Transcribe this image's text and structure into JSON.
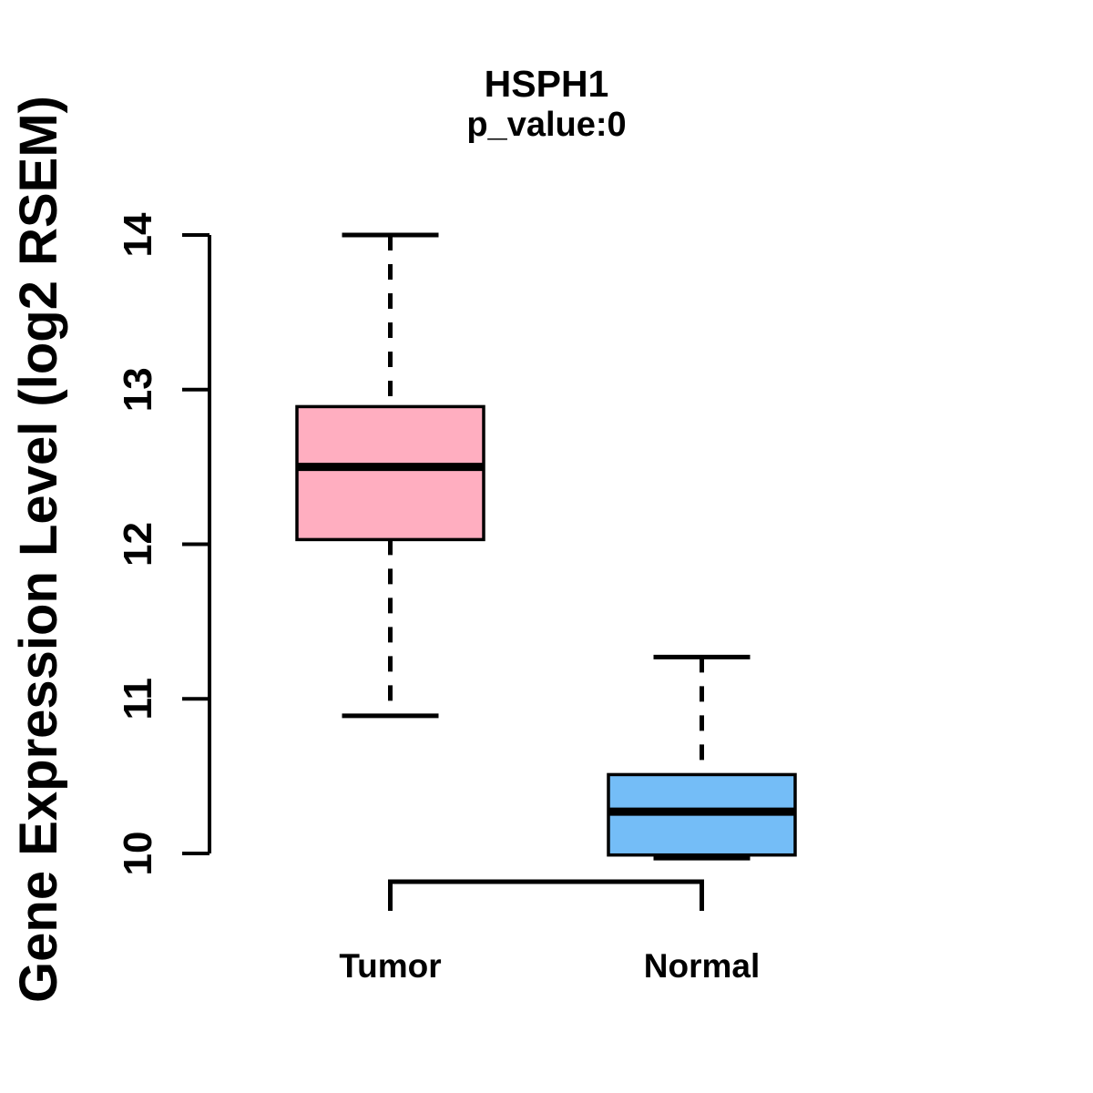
{
  "chart_data": {
    "type": "boxplot",
    "title": "HSPH1",
    "subtitle": "p_value:0",
    "ylabel": "Gene Expression Level (log2 RSEM)",
    "xlabel": "",
    "categories": [
      "Tumor",
      "Normal"
    ],
    "yticks": [
      "10",
      "11",
      "12",
      "13",
      "14"
    ],
    "ytick_values": [
      10,
      11,
      12,
      13,
      14
    ],
    "ylim": [
      10,
      14
    ],
    "grid": false,
    "legend": "none",
    "series": [
      {
        "name": "Tumor",
        "color": "#FFAEC0",
        "whisker_low": 10.89,
        "q1": 12.03,
        "median": 12.5,
        "q3": 12.89,
        "whisker_high": 14.0
      },
      {
        "name": "Normal",
        "color": "#74BDF7",
        "whisker_low": 9.97,
        "q1": 9.99,
        "median": 10.27,
        "q3": 10.51,
        "whisker_high": 11.27
      }
    ],
    "comparison_bracket": {
      "between": [
        "Tumor",
        "Normal"
      ]
    },
    "style_colors": {
      "stroke": "#000000",
      "background": "#FFFFFF"
    }
  }
}
